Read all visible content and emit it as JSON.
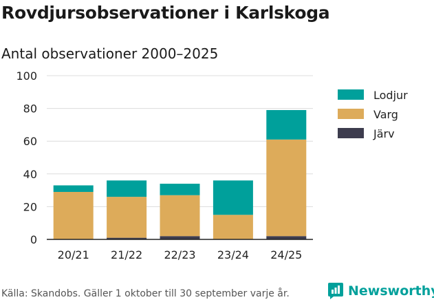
{
  "chart_data": {
    "type": "bar",
    "stacked": true,
    "title": "Rovdjursobservationer i Karlskoga",
    "subtitle": "Antal observationer 2000–2025",
    "categories": [
      "20/21",
      "21/22",
      "22/23",
      "23/24",
      "24/25"
    ],
    "series": [
      {
        "name": "Järv",
        "color": "#3d3c4e",
        "values": [
          0,
          1,
          2,
          0,
          2
        ]
      },
      {
        "name": "Varg",
        "color": "#ddab5a",
        "values": [
          29,
          25,
          25,
          15,
          59
        ]
      },
      {
        "name": "Lodjur",
        "color": "#00a09b",
        "values": [
          4,
          10,
          7,
          21,
          18
        ]
      }
    ],
    "legend_order": [
      "Lodjur",
      "Varg",
      "Järv"
    ],
    "legend_position": "right",
    "ylim": [
      0,
      100
    ],
    "yticks": [
      0,
      20,
      40,
      60,
      80,
      100
    ],
    "grid": true
  },
  "footer": {
    "source": "Källa: Skandobs. Gäller 1 oktober till 30 september varje år.",
    "brand": "Newsworthy",
    "brand_icon": "newsworthy-logo-icon"
  }
}
